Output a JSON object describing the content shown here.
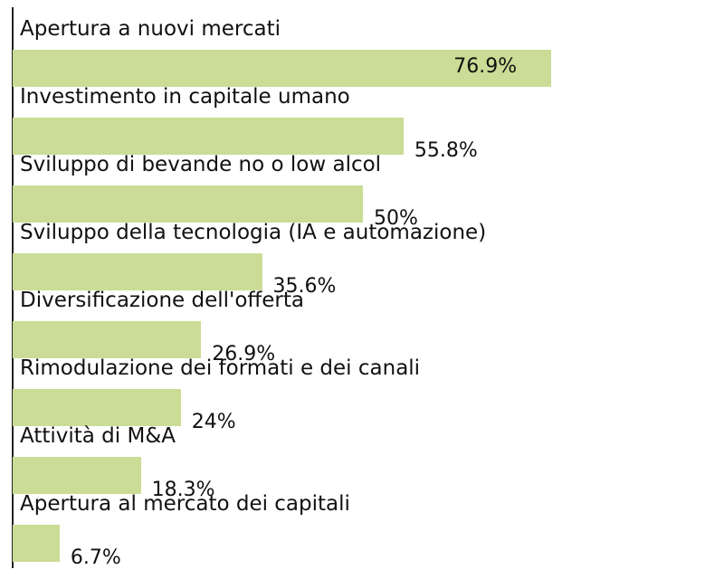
{
  "chart_data": {
    "type": "bar",
    "orientation": "horizontal",
    "categories": [
      "Apertura a nuovi mercati",
      "Investimento in capitale umano",
      "Sviluppo di bevande no o low alcol",
      "Sviluppo della tecnologia (IA e automazione)",
      "Diversificazione dell'offerta",
      "Rimodulazione dei formati e dei canali",
      "Attività di M&A",
      "Apertura al mercato dei capitali"
    ],
    "values": [
      76.9,
      55.8,
      50,
      35.6,
      26.9,
      24,
      18.3,
      6.7
    ],
    "value_labels": [
      "76.9%",
      "55.8%",
      "50%",
      "35.6%",
      "26.9%",
      "24%",
      "18.3%",
      "6.7%"
    ],
    "xlim": [
      0,
      100
    ],
    "grid": false,
    "legend": "none",
    "bar_color": "#cbdc96"
  }
}
